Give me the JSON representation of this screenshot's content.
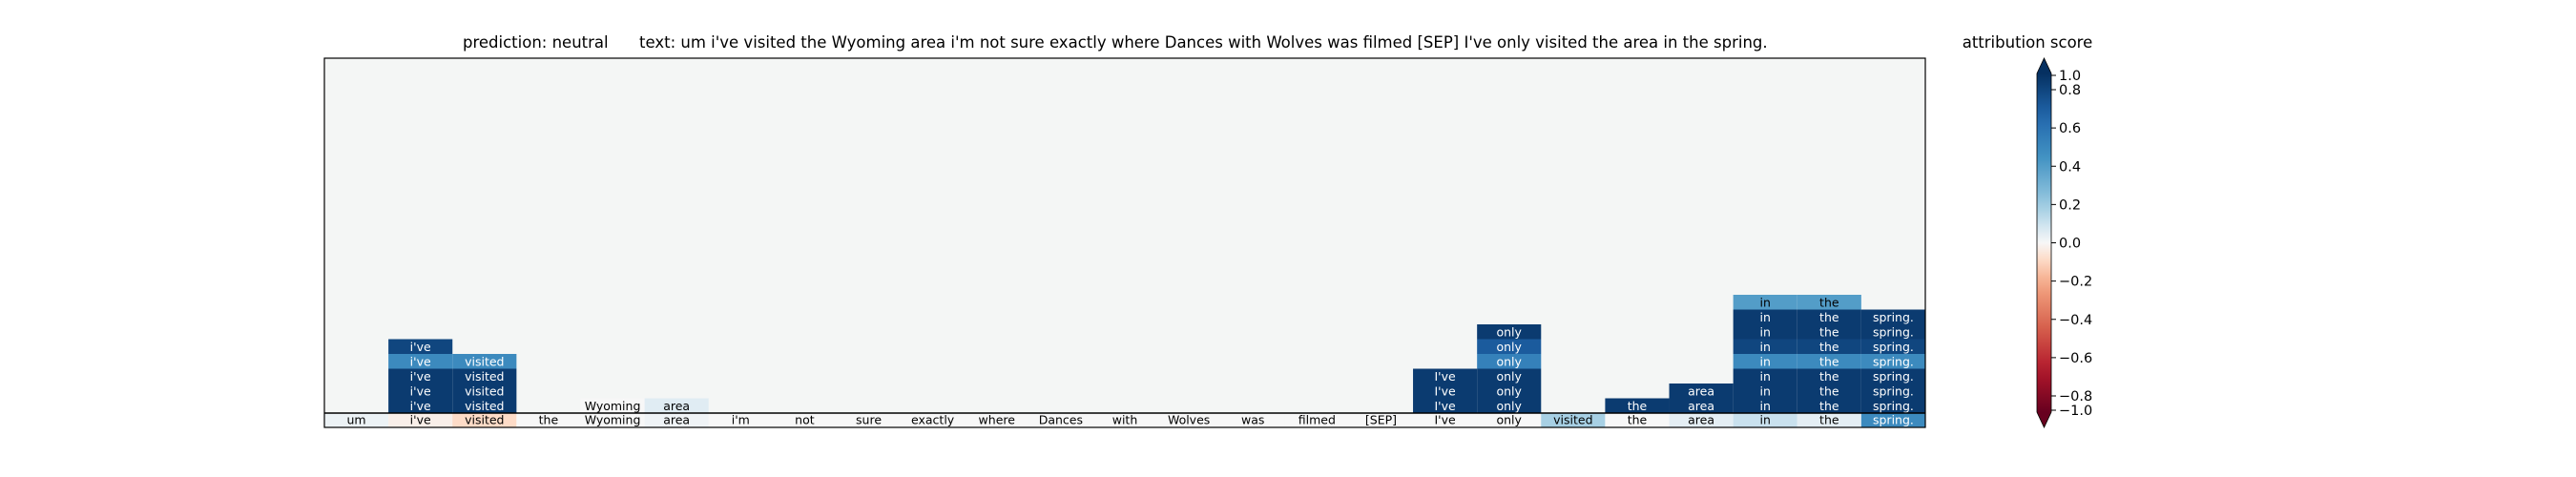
{
  "chart_data": {
    "type": "heatmap",
    "title_prediction": "prediction:  neutral",
    "title_text": "text:  um i've visited the Wyoming area i'm not sure exactly where Dances with Wolves was filmed [SEP] I've only visited the area in the spring.",
    "tokens": [
      "um",
      "i've",
      "visited",
      "the",
      "Wyoming",
      "area",
      "i'm",
      "not",
      "sure",
      "exactly",
      "where",
      "Dances",
      "with",
      "Wolves",
      "was",
      "filmed",
      "[SEP]",
      "I've",
      "only",
      "visited",
      "the",
      "area",
      "in",
      "the",
      "spring."
    ],
    "bottom_row_scores": [
      0.03,
      -0.03,
      -0.1,
      0.0,
      0.0,
      0.02,
      0.0,
      0.0,
      0.0,
      0.0,
      0.0,
      0.0,
      0.0,
      0.0,
      0.0,
      0.0,
      0.0,
      0.0,
      0.0,
      0.2,
      0.0,
      0.05,
      0.12,
      0.05,
      0.55
    ],
    "cells": [
      {
        "row": 1,
        "col": 1,
        "label": "i've",
        "score": 0.95
      },
      {
        "row": 1,
        "col": 2,
        "label": "visited",
        "score": 0.95
      },
      {
        "row": 2,
        "col": 1,
        "label": "i've",
        "score": 0.95
      },
      {
        "row": 2,
        "col": 2,
        "label": "visited",
        "score": 0.95
      },
      {
        "row": 3,
        "col": 1,
        "label": "i've",
        "score": 0.95
      },
      {
        "row": 3,
        "col": 2,
        "label": "visited",
        "score": 0.95
      },
      {
        "row": 4,
        "col": 1,
        "label": "i've",
        "score": 0.55
      },
      {
        "row": 4,
        "col": 2,
        "label": "visited",
        "score": 0.55
      },
      {
        "row": 5,
        "col": 1,
        "label": "i've",
        "score": 0.9
      },
      {
        "row": 1,
        "col": 4,
        "label": "Wyoming",
        "score": 0.0
      },
      {
        "row": 1,
        "col": 5,
        "label": "area",
        "score": 0.06
      },
      {
        "row": 1,
        "col": 17,
        "label": "I've",
        "score": 0.95
      },
      {
        "row": 1,
        "col": 18,
        "label": "only",
        "score": 0.95
      },
      {
        "row": 2,
        "col": 17,
        "label": "I've",
        "score": 0.95
      },
      {
        "row": 2,
        "col": 18,
        "label": "only",
        "score": 0.95
      },
      {
        "row": 3,
        "col": 17,
        "label": "I've",
        "score": 0.95
      },
      {
        "row": 3,
        "col": 18,
        "label": "only",
        "score": 0.95
      },
      {
        "row": 4,
        "col": 18,
        "label": "only",
        "score": 0.6
      },
      {
        "row": 5,
        "col": 18,
        "label": "only",
        "score": 0.8
      },
      {
        "row": 6,
        "col": 18,
        "label": "only",
        "score": 0.95
      },
      {
        "row": 1,
        "col": 20,
        "label": "the",
        "score": 0.95
      },
      {
        "row": 1,
        "col": 21,
        "label": "area",
        "score": 0.95
      },
      {
        "row": 1,
        "col": 22,
        "label": "in",
        "score": 0.95
      },
      {
        "row": 1,
        "col": 23,
        "label": "the",
        "score": 0.95
      },
      {
        "row": 1,
        "col": 24,
        "label": "spring.",
        "score": 0.95
      },
      {
        "row": 2,
        "col": 21,
        "label": "area",
        "score": 0.95
      },
      {
        "row": 2,
        "col": 22,
        "label": "in",
        "score": 0.95
      },
      {
        "row": 2,
        "col": 23,
        "label": "the",
        "score": 0.95
      },
      {
        "row": 2,
        "col": 24,
        "label": "spring.",
        "score": 0.95
      },
      {
        "row": 3,
        "col": 22,
        "label": "in",
        "score": 0.95
      },
      {
        "row": 3,
        "col": 23,
        "label": "the",
        "score": 0.95
      },
      {
        "row": 3,
        "col": 24,
        "label": "spring.",
        "score": 0.95
      },
      {
        "row": 4,
        "col": 22,
        "label": "in",
        "score": 0.55
      },
      {
        "row": 4,
        "col": 23,
        "label": "the",
        "score": 0.55
      },
      {
        "row": 4,
        "col": 24,
        "label": "spring.",
        "score": 0.55
      },
      {
        "row": 5,
        "col": 22,
        "label": "in",
        "score": 0.9
      },
      {
        "row": 5,
        "col": 23,
        "label": "the",
        "score": 0.9
      },
      {
        "row": 5,
        "col": 24,
        "label": "spring.",
        "score": 0.9
      },
      {
        "row": 6,
        "col": 22,
        "label": "in",
        "score": 0.95
      },
      {
        "row": 6,
        "col": 23,
        "label": "the",
        "score": 0.95
      },
      {
        "row": 6,
        "col": 24,
        "label": "spring.",
        "score": 0.95
      },
      {
        "row": 7,
        "col": 22,
        "label": "in",
        "score": 0.95
      },
      {
        "row": 7,
        "col": 23,
        "label": "the",
        "score": 0.95
      },
      {
        "row": 7,
        "col": 24,
        "label": "spring.",
        "score": 0.95
      },
      {
        "row": 8,
        "col": 22,
        "label": "in",
        "score": 0.45
      },
      {
        "row": 8,
        "col": 23,
        "label": "the",
        "score": 0.45
      }
    ],
    "colorbar": {
      "title": "attribution score",
      "range": [
        -1.0,
        1.0
      ],
      "colormap": "RdBu",
      "ticks": [
        {
          "value": 1.0,
          "label": "1.0"
        },
        {
          "value": 0.8,
          "label": "0.8"
        },
        {
          "value": 0.6,
          "label": "0.6"
        },
        {
          "value": 0.4,
          "label": "0.4"
        },
        {
          "value": 0.2,
          "label": "0.2"
        },
        {
          "value": 0.0,
          "label": "0.0"
        },
        {
          "value": -0.2,
          "label": "−0.2"
        },
        {
          "value": -0.4,
          "label": "−0.4"
        },
        {
          "value": -0.6,
          "label": "−0.6"
        },
        {
          "value": -0.8,
          "label": "−0.8"
        },
        {
          "value": -1.0,
          "label": "−1.0"
        }
      ]
    },
    "background_color": "#f4f6f5"
  }
}
